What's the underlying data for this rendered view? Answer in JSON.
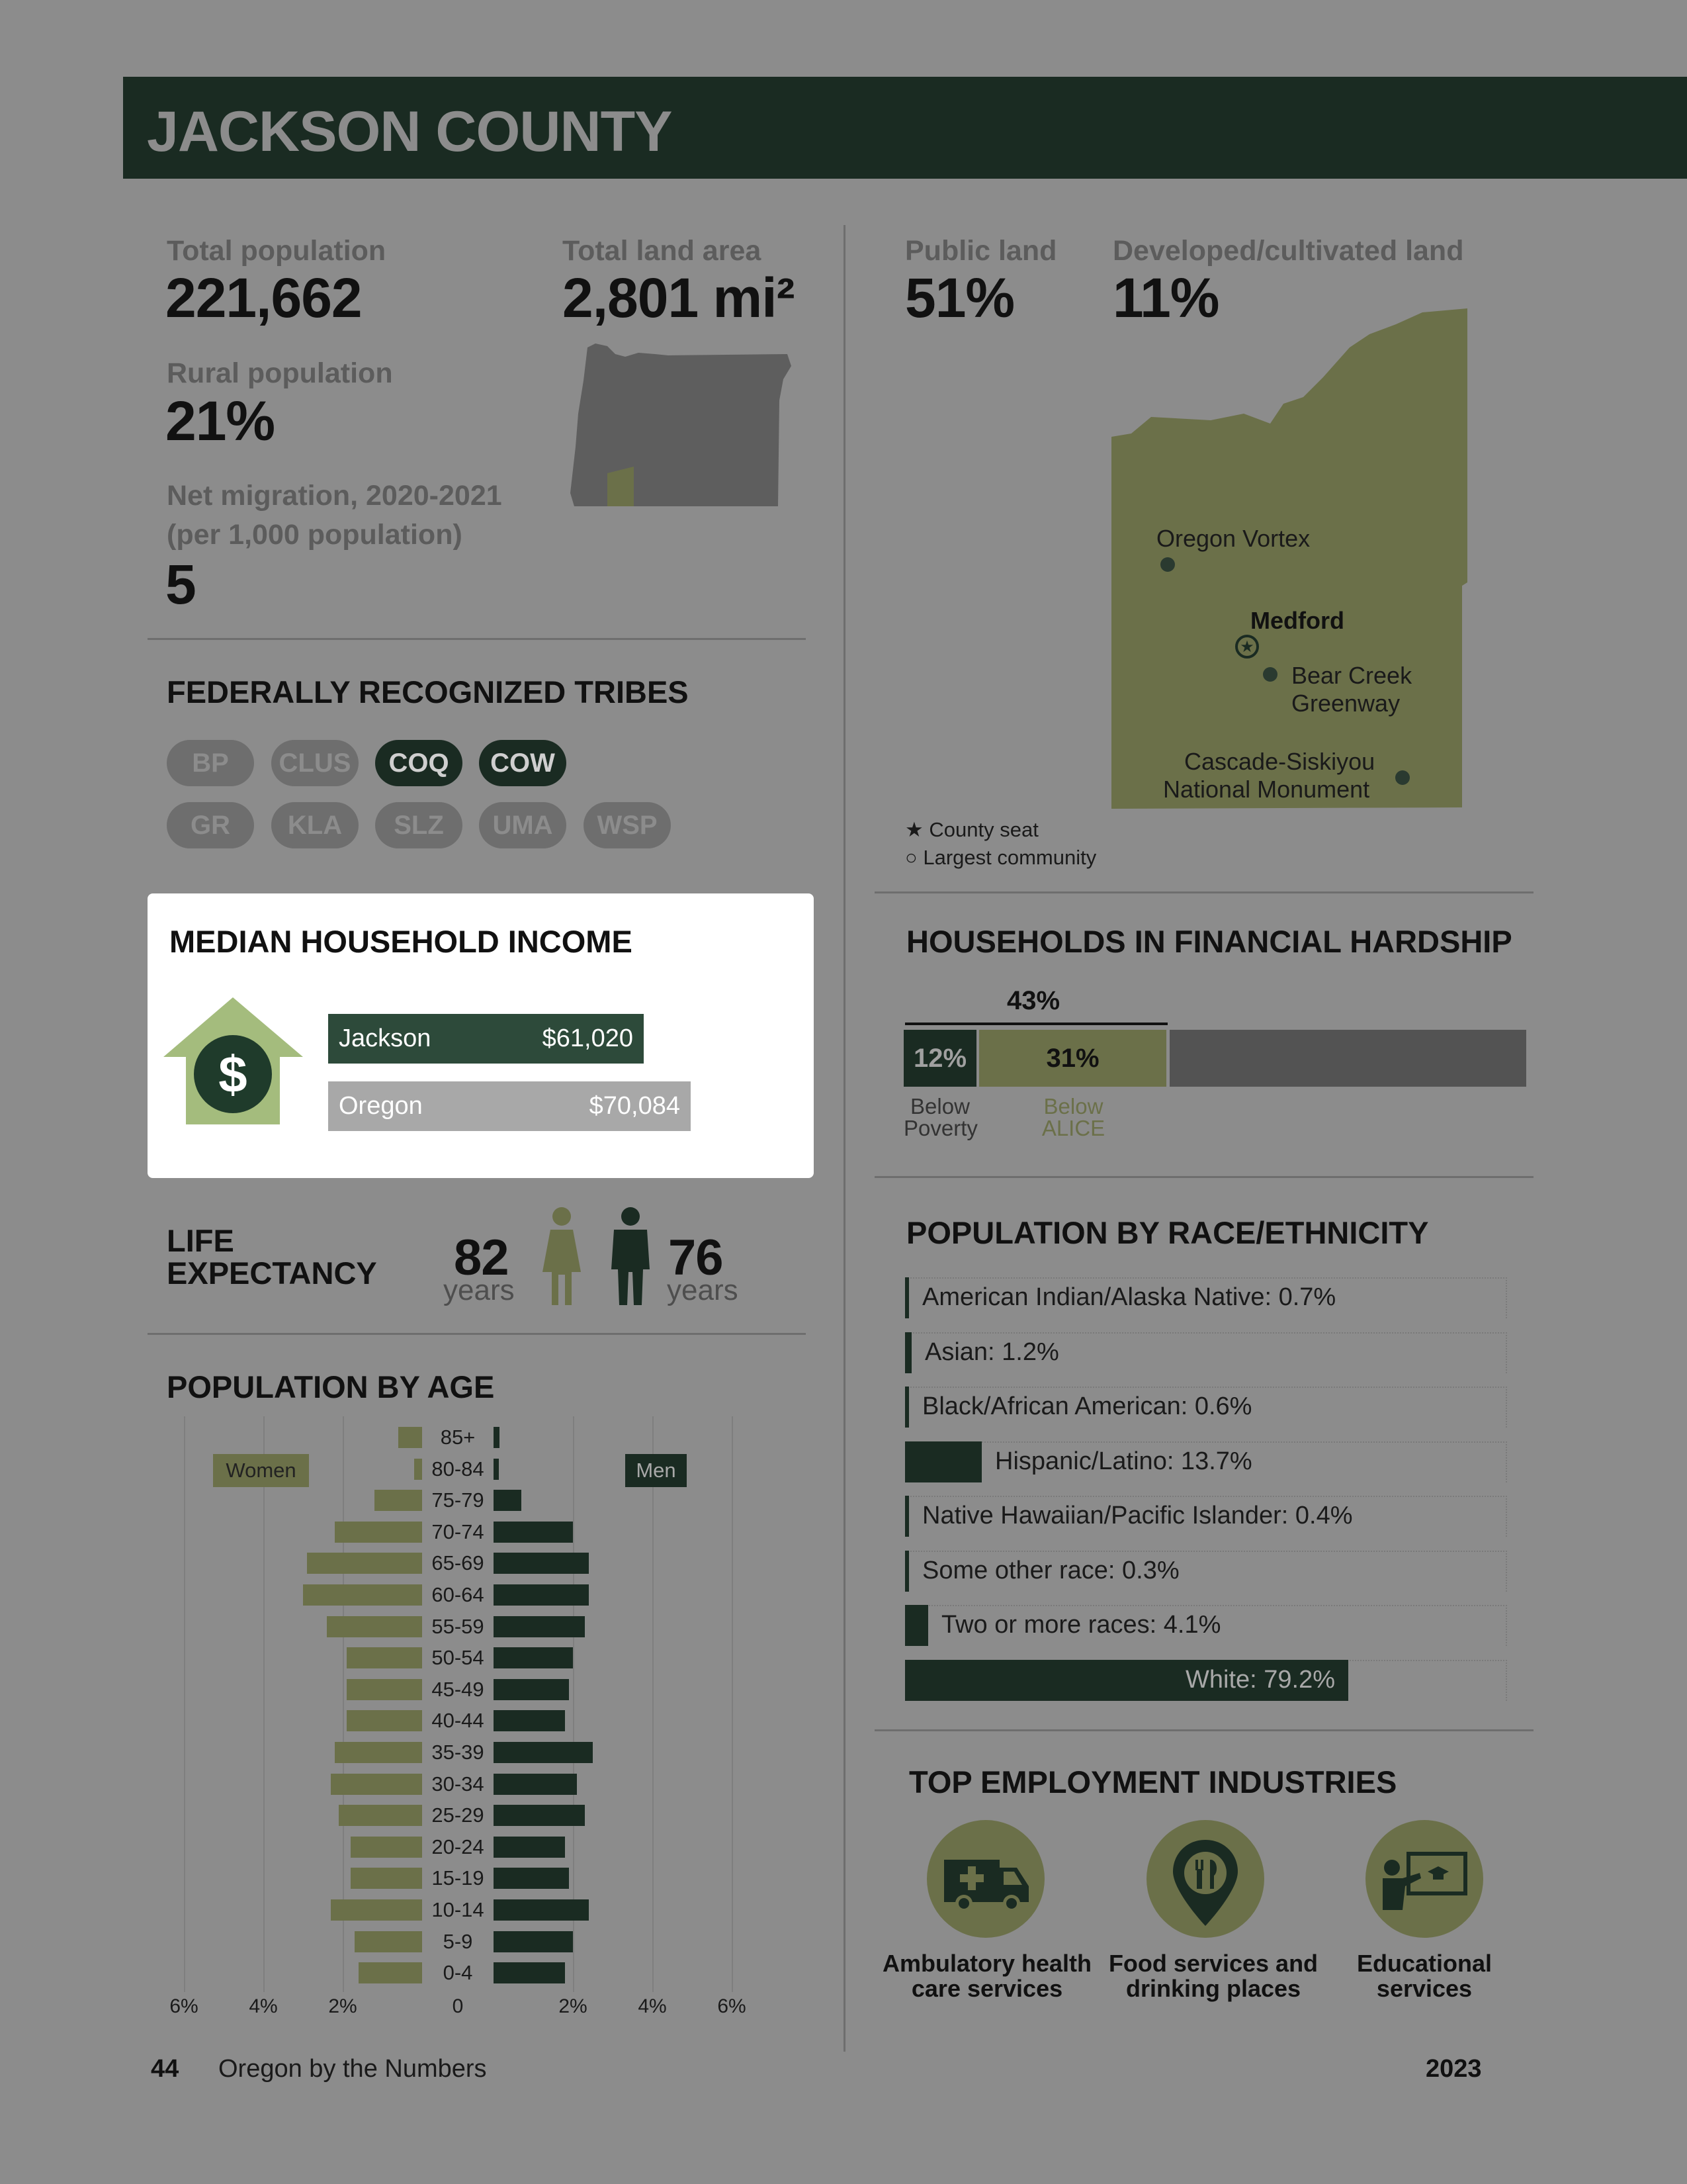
{
  "header": {
    "title": "JACKSON COUNTY"
  },
  "stats": {
    "total_population_label": "Total population",
    "total_population": "221,662",
    "land_area_label": "Total land area",
    "land_area": "2,801 mi²",
    "rural_label": "Rural population",
    "rural": "21%",
    "migration_label_1": "Net migration, 2020-2021",
    "migration_label_2": "(per 1,000 population)",
    "migration": "5",
    "public_land_label": "Public land",
    "public_land": "51%",
    "developed_label": "Developed/cultivated land",
    "developed": "11%"
  },
  "map": {
    "places": [
      "Oregon Vortex",
      "Medford",
      "Bear Creek",
      "Greenway",
      "Cascade-Siskiyou",
      "National Monument"
    ],
    "legend_seat": "County seat",
    "legend_community": "Largest community"
  },
  "tribes": {
    "title": "FEDERALLY RECOGNIZED TRIBES",
    "items": [
      {
        "code": "BP",
        "highlight": false
      },
      {
        "code": "CLUS",
        "highlight": false
      },
      {
        "code": "COQ",
        "highlight": true
      },
      {
        "code": "COW",
        "highlight": true
      },
      {
        "code": "GR",
        "highlight": false
      },
      {
        "code": "KLA",
        "highlight": false
      },
      {
        "code": "SLZ",
        "highlight": false
      },
      {
        "code": "UMA",
        "highlight": false
      },
      {
        "code": "WSP",
        "highlight": false
      }
    ]
  },
  "income": {
    "title": "MEDIAN HOUSEHOLD INCOME",
    "icon": "dollar-house-icon",
    "rows": [
      {
        "name": "Jackson",
        "value": "$61,020",
        "amount": 61020
      },
      {
        "name": "Oregon",
        "value": "$70,084",
        "amount": 70084
      }
    ]
  },
  "hardship": {
    "title": "HOUSEHOLDS IN FINANCIAL HARDSHIP",
    "total": "43%",
    "poverty": "12%",
    "alice": "31%",
    "poverty_label_1": "Below",
    "poverty_label_2": "Poverty",
    "alice_label_1": "Below",
    "alice_label_2": "ALICE"
  },
  "life": {
    "title_1": "LIFE",
    "title_2": "EXPECTANCY",
    "women": "82",
    "men": "76",
    "unit": "years"
  },
  "race": {
    "title": "POPULATION BY RACE/ETHNICITY",
    "rows": [
      {
        "label": "American Indian/Alaska Native: 0.7%",
        "value": 0.7
      },
      {
        "label": "Asian: 1.2%",
        "value": 1.2
      },
      {
        "label": "Black/African American: 0.6%",
        "value": 0.6
      },
      {
        "label": "Hispanic/Latino: 13.7%",
        "value": 13.7
      },
      {
        "label": "Native Hawaiian/Pacific Islander: 0.4%",
        "value": 0.4
      },
      {
        "label": "Some other race: 0.3%",
        "value": 0.3
      },
      {
        "label": "Two or more races: 4.1%",
        "value": 4.1
      },
      {
        "label": "White: 79.2%",
        "value": 79.2
      }
    ]
  },
  "age": {
    "title": "POPULATION BY AGE",
    "women_label": "Women",
    "men_label": "Men",
    "ticks": [
      "6%",
      "4%",
      "2%",
      "0",
      "2%",
      "4%",
      "6%"
    ]
  },
  "chart_data": {
    "type": "bar",
    "categories": [
      "85+",
      "80-84",
      "75-79",
      "70-74",
      "65-69",
      "60-64",
      "55-59",
      "50-54",
      "45-49",
      "40-44",
      "35-39",
      "30-34",
      "25-29",
      "20-24",
      "15-19",
      "10-14",
      "5-9",
      "0-4"
    ],
    "series": [
      {
        "name": "Women",
        "values": [
          0.6,
          0.2,
          1.2,
          2.2,
          2.9,
          3.0,
          2.4,
          1.9,
          1.9,
          1.9,
          2.2,
          2.3,
          2.1,
          1.8,
          1.8,
          2.3,
          1.7,
          1.6
        ]
      },
      {
        "name": "Men",
        "values": [
          0.15,
          0.1,
          0.7,
          2.0,
          2.4,
          2.4,
          2.3,
          2.0,
          1.9,
          1.8,
          2.5,
          2.1,
          2.3,
          1.8,
          1.9,
          2.4,
          2.0,
          1.8
        ]
      }
    ],
    "title": "POPULATION BY AGE",
    "xlim": [
      -6,
      6
    ],
    "grid": true
  },
  "industries": {
    "title": "TOP EMPLOYMENT INDUSTRIES",
    "items": [
      {
        "line1": "Ambulatory health",
        "line2": "care services",
        "icon": "ambulance-icon"
      },
      {
        "line1": "Food services and",
        "line2": "drinking places",
        "icon": "food-pin-icon"
      },
      {
        "line1": "Educational",
        "line2": "services",
        "icon": "teacher-board-icon"
      }
    ]
  },
  "footer": {
    "page": "44",
    "publication": "Oregon by the Numbers",
    "year": "2023"
  }
}
